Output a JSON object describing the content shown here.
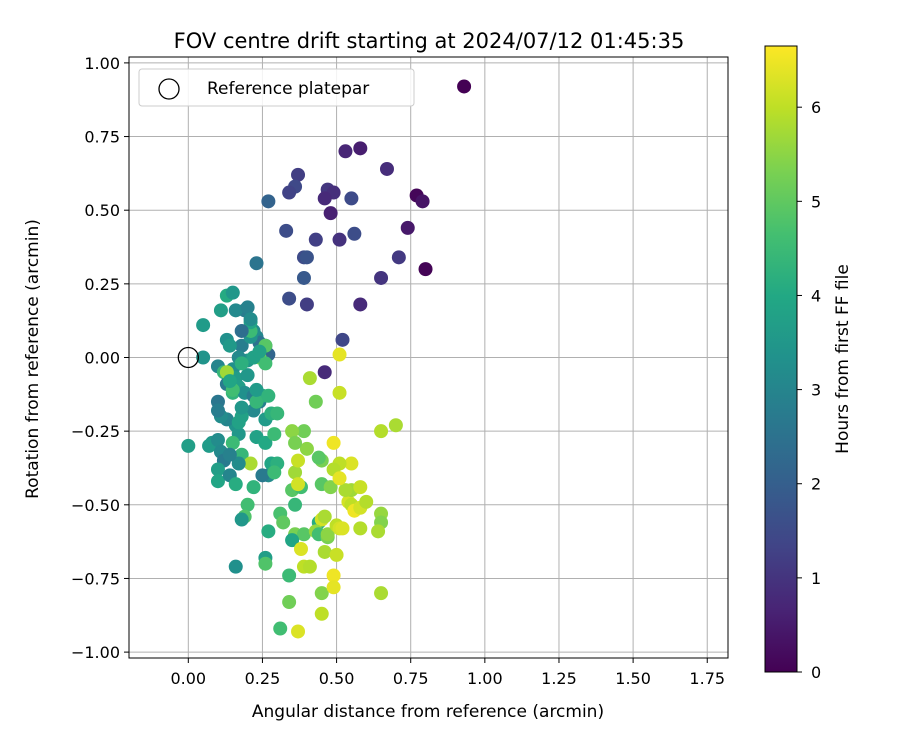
{
  "chart_data": {
    "type": "scatter",
    "title": "FOV centre drift starting at 2024/07/12 01:45:35",
    "xlabel": "Angular distance from reference (arcmin)",
    "ylabel": "Rotation from reference (arcmin)",
    "xlim": [
      -0.2,
      1.82
    ],
    "ylim": [
      -1.02,
      1.02
    ],
    "xticks": [
      0.0,
      0.25,
      0.5,
      0.75,
      1.0,
      1.25,
      1.5,
      1.75
    ],
    "xtick_labels": [
      "0.00",
      "0.25",
      "0.50",
      "0.75",
      "1.00",
      "1.25",
      "1.50",
      "1.75"
    ],
    "yticks": [
      1.0,
      0.75,
      0.5,
      0.25,
      0.0,
      -0.25,
      -0.5,
      -0.75,
      -1.0
    ],
    "ytick_labels": [
      "1.00",
      "0.75",
      "0.50",
      "0.25",
      "0.00",
      "−0.25",
      "−0.50",
      "−0.75",
      "−1.00"
    ],
    "grid": true,
    "legend": {
      "position": "top-left",
      "label": "Reference platepar"
    },
    "reference_point": [
      0.0,
      0.0
    ],
    "colorbar": {
      "label": "Hours from first FF file",
      "range": [
        0,
        6.65
      ],
      "ticks": [
        0,
        1,
        2,
        3,
        4,
        5,
        6
      ],
      "tick_labels": [
        "0",
        "1",
        "2",
        "3",
        "4",
        "5",
        "6"
      ],
      "colormap": "viridis"
    },
    "points": [
      [
        0.93,
        0.92,
        0.0
      ],
      [
        0.58,
        0.71,
        0.55
      ],
      [
        0.53,
        0.7,
        0.7
      ],
      [
        0.77,
        0.55,
        0.1
      ],
      [
        0.79,
        0.53,
        0.35
      ],
      [
        0.8,
        0.3,
        0.05
      ],
      [
        0.67,
        0.64,
        0.85
      ],
      [
        0.74,
        0.44,
        0.45
      ],
      [
        0.71,
        0.34,
        1.1
      ],
      [
        0.65,
        0.27,
        1.0
      ],
      [
        0.58,
        0.18,
        0.8
      ],
      [
        0.55,
        0.54,
        1.5
      ],
      [
        0.56,
        0.42,
        1.55
      ],
      [
        0.48,
        0.49,
        0.6
      ],
      [
        0.51,
        0.4,
        0.95
      ],
      [
        0.47,
        0.57,
        1.05
      ],
      [
        0.49,
        0.56,
        0.9
      ],
      [
        0.46,
        0.54,
        0.8
      ],
      [
        0.37,
        0.62,
        1.2
      ],
      [
        0.36,
        0.58,
        1.45
      ],
      [
        0.34,
        0.56,
        1.3
      ],
      [
        0.27,
        0.53,
        2.1
      ],
      [
        0.33,
        0.43,
        1.55
      ],
      [
        0.43,
        0.4,
        1.25
      ],
      [
        0.39,
        0.34,
        1.5
      ],
      [
        0.4,
        0.34,
        1.7
      ],
      [
        0.39,
        0.27,
        1.85
      ],
      [
        0.23,
        0.32,
        2.55
      ],
      [
        0.34,
        0.2,
        1.55
      ],
      [
        0.4,
        0.18,
        1.2
      ],
      [
        0.52,
        0.06,
        1.4
      ],
      [
        0.46,
        -0.05,
        0.8
      ],
      [
        0.19,
        0.16,
        2.75
      ],
      [
        0.16,
        0.16,
        3.1
      ],
      [
        0.13,
        0.21,
        4.05
      ],
      [
        0.15,
        0.22,
        3.5
      ],
      [
        0.11,
        0.16,
        3.7
      ],
      [
        0.2,
        0.17,
        2.9
      ],
      [
        0.05,
        0.11,
        3.6
      ],
      [
        0.05,
        0.0,
        3.4
      ],
      [
        0.13,
        0.06,
        3.3
      ],
      [
        0.18,
        0.04,
        2.8
      ],
      [
        0.23,
        0.07,
        3.0
      ],
      [
        0.24,
        0.05,
        2.5
      ],
      [
        0.25,
        0.02,
        2.3
      ],
      [
        0.27,
        0.01,
        2.15
      ],
      [
        0.26,
        0.04,
        2.6
      ],
      [
        0.22,
        0.09,
        3.2
      ],
      [
        0.21,
        0.07,
        3.4
      ],
      [
        0.2,
        -0.01,
        3.5
      ],
      [
        0.17,
        0.0,
        3.1
      ],
      [
        0.15,
        -0.04,
        3.3
      ],
      [
        0.14,
        0.04,
        3.55
      ],
      [
        0.1,
        -0.03,
        3.0
      ],
      [
        0.12,
        -0.05,
        4.4
      ],
      [
        0.16,
        -0.07,
        3.6
      ],
      [
        0.17,
        -0.1,
        3.7
      ],
      [
        0.13,
        -0.09,
        2.75
      ],
      [
        0.15,
        -0.12,
        4.3
      ],
      [
        0.19,
        -0.12,
        3.3
      ],
      [
        0.22,
        -0.13,
        2.8
      ],
      [
        0.24,
        -0.15,
        2.9
      ],
      [
        0.22,
        -0.18,
        3.1
      ],
      [
        0.18,
        -0.2,
        3.8
      ],
      [
        0.16,
        -0.23,
        3.4
      ],
      [
        0.17,
        -0.26,
        3.5
      ],
      [
        0.13,
        -0.21,
        3.0
      ],
      [
        0.11,
        -0.2,
        3.2
      ],
      [
        0.1,
        -0.15,
        2.6
      ],
      [
        0.1,
        -0.18,
        2.8
      ],
      [
        0.08,
        -0.29,
        3.5
      ],
      [
        0.07,
        -0.3,
        3.6
      ],
      [
        0.0,
        -0.3,
        3.7
      ],
      [
        0.1,
        -0.28,
        3.2
      ],
      [
        0.11,
        -0.32,
        3.1
      ],
      [
        0.12,
        -0.35,
        2.7
      ],
      [
        0.1,
        -0.38,
        3.7
      ],
      [
        0.1,
        -0.42,
        3.9
      ],
      [
        0.14,
        -0.4,
        3.0
      ],
      [
        0.16,
        -0.43,
        4.1
      ],
      [
        0.18,
        -0.33,
        4.4
      ],
      [
        0.23,
        -0.27,
        3.8
      ],
      [
        0.26,
        -0.29,
        4.0
      ],
      [
        0.29,
        -0.26,
        4.5
      ],
      [
        0.26,
        -0.21,
        3.6
      ],
      [
        0.22,
        -0.44,
        4.3
      ],
      [
        0.27,
        -0.4,
        3.2
      ],
      [
        0.25,
        -0.4,
        2.7
      ],
      [
        0.28,
        -0.36,
        3.9
      ],
      [
        0.3,
        -0.36,
        4.2
      ],
      [
        0.29,
        -0.39,
        4.5
      ],
      [
        0.2,
        -0.5,
        4.6
      ],
      [
        0.19,
        -0.54,
        4.8
      ],
      [
        0.18,
        -0.55,
        3.5
      ],
      [
        0.27,
        -0.59,
        4.1
      ],
      [
        0.31,
        -0.53,
        4.7
      ],
      [
        0.32,
        -0.56,
        5.0
      ],
      [
        0.36,
        -0.5,
        4.4
      ],
      [
        0.35,
        -0.45,
        4.9
      ],
      [
        0.38,
        -0.44,
        4.6
      ],
      [
        0.36,
        -0.6,
        5.3
      ],
      [
        0.39,
        -0.6,
        4.9
      ],
      [
        0.36,
        -0.39,
        5.7
      ],
      [
        0.37,
        -0.43,
        6.2
      ],
      [
        0.35,
        -0.62,
        3.9
      ],
      [
        0.26,
        -0.68,
        3.7
      ],
      [
        0.26,
        -0.7,
        4.8
      ],
      [
        0.16,
        -0.71,
        3.3
      ],
      [
        0.34,
        -0.74,
        4.5
      ],
      [
        0.34,
        -0.83,
        5.2
      ],
      [
        0.31,
        -0.92,
        4.6
      ],
      [
        0.37,
        -0.93,
        6.3
      ],
      [
        0.39,
        -0.71,
        6.0
      ],
      [
        0.38,
        -0.65,
        6.3
      ],
      [
        0.41,
        -0.71,
        5.9
      ],
      [
        0.44,
        -0.56,
        4.1
      ],
      [
        0.45,
        -0.55,
        6.2
      ],
      [
        0.43,
        -0.59,
        5.6
      ],
      [
        0.44,
        -0.6,
        4.6
      ],
      [
        0.47,
        -0.61,
        5.3
      ],
      [
        0.46,
        -0.66,
        5.8
      ],
      [
        0.47,
        -0.6,
        5.5
      ],
      [
        0.45,
        -0.43,
        4.9
      ],
      [
        0.46,
        -0.54,
        5.8
      ],
      [
        0.48,
        -0.44,
        5.4
      ],
      [
        0.5,
        -0.57,
        6.0
      ],
      [
        0.51,
        -0.58,
        6.2
      ],
      [
        0.52,
        -0.58,
        6.3
      ],
      [
        0.5,
        -0.67,
        6.1
      ],
      [
        0.45,
        -0.8,
        5.4
      ],
      [
        0.45,
        -0.87,
        6.0
      ],
      [
        0.49,
        -0.74,
        6.5
      ],
      [
        0.49,
        -0.78,
        6.4
      ],
      [
        0.54,
        -0.49,
        6.2
      ],
      [
        0.55,
        -0.5,
        6.0
      ],
      [
        0.56,
        -0.52,
        6.5
      ],
      [
        0.58,
        -0.51,
        6.2
      ],
      [
        0.55,
        -0.45,
        5.7
      ],
      [
        0.58,
        -0.44,
        6.1
      ],
      [
        0.6,
        -0.49,
        5.9
      ],
      [
        0.58,
        -0.58,
        5.9
      ],
      [
        0.65,
        -0.53,
        5.6
      ],
      [
        0.65,
        -0.56,
        5.4
      ],
      [
        0.64,
        -0.59,
        5.8
      ],
      [
        0.65,
        -0.8,
        5.8
      ],
      [
        0.53,
        -0.45,
        5.8
      ],
      [
        0.55,
        -0.36,
        6.3
      ],
      [
        0.51,
        -0.36,
        6.0
      ],
      [
        0.49,
        -0.38,
        5.9
      ],
      [
        0.51,
        -0.41,
        6.4
      ],
      [
        0.49,
        -0.29,
        6.5
      ],
      [
        0.45,
        -0.35,
        5.3
      ],
      [
        0.44,
        -0.34,
        4.9
      ],
      [
        0.4,
        -0.31,
        5.5
      ],
      [
        0.39,
        -0.25,
        5.2
      ],
      [
        0.35,
        -0.25,
        5.5
      ],
      [
        0.36,
        -0.29,
        5.3
      ],
      [
        0.37,
        -0.35,
        6.1
      ],
      [
        0.43,
        -0.15,
        5.2
      ],
      [
        0.41,
        -0.07,
        5.8
      ],
      [
        0.51,
        -0.12,
        6.1
      ],
      [
        0.51,
        0.01,
        6.4
      ],
      [
        0.65,
        -0.25,
        5.9
      ],
      [
        0.7,
        -0.23,
        5.8
      ],
      [
        0.24,
        0.0,
        5.4
      ],
      [
        0.26,
        -0.02,
        4.6
      ],
      [
        0.26,
        0.04,
        4.9
      ],
      [
        0.22,
        0.0,
        3.8
      ],
      [
        0.2,
        -0.06,
        3.5
      ],
      [
        0.15,
        -0.11,
        4.6
      ],
      [
        0.13,
        -0.05,
        5.7
      ],
      [
        0.18,
        -0.02,
        4.2
      ],
      [
        0.14,
        -0.08,
        3.9
      ],
      [
        0.25,
        -0.13,
        4.1
      ],
      [
        0.23,
        -0.15,
        4.4
      ],
      [
        0.23,
        -0.11,
        3.6
      ],
      [
        0.27,
        -0.13,
        4.3
      ],
      [
        0.28,
        -0.19,
        4.2
      ],
      [
        0.3,
        -0.19,
        4.4
      ],
      [
        0.21,
        -0.36,
        5.8
      ],
      [
        0.17,
        -0.22,
        3.8
      ],
      [
        0.15,
        -0.29,
        4.5
      ],
      [
        0.17,
        -0.36,
        3.2
      ],
      [
        0.14,
        -0.33,
        2.9
      ],
      [
        0.18,
        -0.17,
        3.5
      ],
      [
        0.21,
        0.09,
        4.5
      ],
      [
        0.21,
        0.12,
        3.9
      ],
      [
        0.24,
        0.02,
        3.8
      ],
      [
        0.21,
        0.13,
        3.2
      ],
      [
        0.18,
        0.09,
        2.4
      ]
    ]
  }
}
